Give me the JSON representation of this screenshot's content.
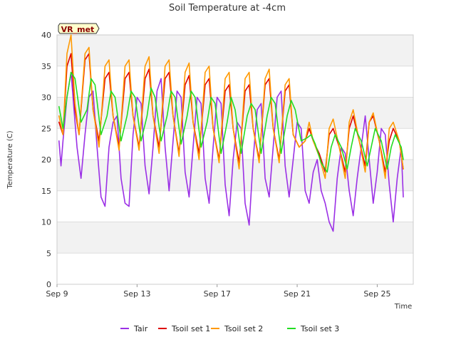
{
  "chart_data": {
    "type": "line",
    "title": "Soil Temperature at -4cm",
    "xlabel": "Time",
    "ylabel": "Temperature (C)",
    "badge": "VR_met",
    "x_unit": "day (Sep)",
    "xlim": [
      9,
      26.8
    ],
    "ylim": [
      0,
      40
    ],
    "yticks": [
      0,
      5,
      10,
      15,
      20,
      25,
      30,
      35,
      40
    ],
    "xticks": [
      {
        "value": 9,
        "label": "Sep 9"
      },
      {
        "value": 13,
        "label": "Sep 13"
      },
      {
        "value": 17,
        "label": "Sep 17"
      },
      {
        "value": 21,
        "label": "Sep 21"
      },
      {
        "value": 25,
        "label": "Sep 25"
      }
    ],
    "grid": true,
    "legend_position": "bottom",
    "series": [
      {
        "name": "Tair",
        "color": "#9b30e6",
        "x": [
          9.1,
          9.2,
          9.3,
          9.5,
          9.7,
          9.8,
          10.0,
          10.2,
          10.4,
          10.6,
          10.8,
          11.0,
          11.2,
          11.4,
          11.6,
          11.8,
          12.0,
          12.2,
          12.4,
          12.6,
          12.8,
          13.0,
          13.2,
          13.4,
          13.6,
          13.8,
          14.0,
          14.2,
          14.4,
          14.6,
          14.8,
          15.0,
          15.2,
          15.4,
          15.6,
          15.8,
          16.0,
          16.2,
          16.4,
          16.6,
          16.8,
          17.0,
          17.2,
          17.4,
          17.6,
          17.8,
          18.0,
          18.2,
          18.4,
          18.6,
          18.8,
          19.0,
          19.2,
          19.4,
          19.6,
          19.8,
          20.0,
          20.2,
          20.4,
          20.6,
          20.8,
          21.0,
          21.2,
          21.4,
          21.6,
          21.8,
          22.0,
          22.2,
          22.4,
          22.6,
          22.8,
          23.0,
          23.2,
          23.4,
          23.6,
          23.8,
          24.0,
          24.2,
          24.4,
          24.6,
          24.8,
          25.0,
          25.2,
          25.4,
          25.6,
          25.8,
          26.0,
          26.2,
          26.3
        ],
        "y": [
          23,
          19,
          23,
          30,
          34,
          30,
          22,
          17,
          24,
          30,
          31,
          22,
          14,
          12.5,
          22,
          26,
          27,
          17,
          13,
          12.5,
          24,
          30,
          29,
          19,
          14.5,
          22,
          31,
          33,
          22,
          15,
          23,
          31,
          30,
          18,
          14,
          22,
          30,
          29,
          17,
          13,
          22,
          30,
          29,
          16,
          11,
          20,
          26,
          25,
          13,
          9.5,
          20,
          28,
          29,
          17,
          14,
          22,
          30,
          31,
          19,
          14,
          20,
          26,
          25,
          15,
          13,
          18,
          20,
          15,
          13,
          10,
          8.5,
          17,
          22,
          21,
          15,
          11,
          17,
          22,
          27,
          20,
          13,
          18,
          25,
          24,
          16,
          10,
          17,
          22,
          14
        ]
      },
      {
        "name": "Tsoil set 1",
        "color": "#dd0000",
        "x": [
          9.1,
          9.3,
          9.5,
          9.7,
          9.9,
          10.1,
          10.4,
          10.6,
          10.8,
          11.1,
          11.4,
          11.6,
          11.8,
          12.1,
          12.4,
          12.6,
          12.8,
          13.1,
          13.4,
          13.6,
          13.8,
          14.1,
          14.4,
          14.6,
          14.8,
          15.1,
          15.4,
          15.6,
          15.8,
          16.1,
          16.4,
          16.6,
          16.8,
          17.1,
          17.4,
          17.6,
          17.8,
          18.1,
          18.4,
          18.6,
          18.8,
          19.1,
          19.4,
          19.6,
          19.8,
          20.1,
          20.4,
          20.6,
          20.8,
          21.1,
          21.4,
          21.6,
          21.8,
          22.1,
          22.4,
          22.6,
          22.8,
          23.1,
          23.4,
          23.6,
          23.8,
          24.1,
          24.4,
          24.6,
          24.8,
          25.1,
          25.4,
          25.6,
          25.8,
          26.1,
          26.3
        ],
        "y": [
          26,
          24,
          35,
          37,
          28,
          24,
          36,
          37,
          28,
          23,
          33,
          34,
          27,
          22,
          33,
          34,
          27,
          22,
          33,
          34.5,
          27,
          22,
          33,
          34,
          27,
          21,
          32,
          33.5,
          26,
          21,
          32,
          33,
          25,
          20,
          31,
          32,
          25,
          19.5,
          31,
          32,
          25,
          20,
          32,
          33,
          25,
          20,
          31,
          32,
          24,
          22,
          23,
          25,
          23,
          21,
          18,
          24,
          25,
          22,
          18,
          25,
          27,
          23,
          19,
          26,
          27,
          23,
          18,
          23,
          25,
          23,
          18.5
        ]
      },
      {
        "name": "Tsoil set 2",
        "color": "#ff9900",
        "x": [
          9.1,
          9.3,
          9.5,
          9.7,
          9.9,
          10.1,
          10.4,
          10.6,
          10.8,
          11.1,
          11.4,
          11.6,
          11.8,
          12.1,
          12.4,
          12.6,
          12.8,
          13.1,
          13.4,
          13.6,
          13.8,
          14.1,
          14.4,
          14.6,
          14.8,
          15.1,
          15.4,
          15.6,
          15.8,
          16.1,
          16.4,
          16.6,
          16.8,
          17.1,
          17.4,
          17.6,
          17.8,
          18.1,
          18.4,
          18.6,
          18.8,
          19.1,
          19.4,
          19.6,
          19.8,
          20.1,
          20.4,
          20.6,
          20.8,
          21.1,
          21.4,
          21.6,
          21.8,
          22.1,
          22.4,
          22.6,
          22.8,
          23.1,
          23.4,
          23.6,
          23.8,
          24.1,
          24.4,
          24.6,
          24.8,
          25.1,
          25.4,
          25.6,
          25.8,
          26.1,
          26.3
        ],
        "y": [
          27,
          24,
          37,
          40,
          29,
          24,
          37,
          38,
          28,
          22,
          35,
          36,
          27,
          21.5,
          35,
          36,
          27,
          21.5,
          35,
          36.5,
          27,
          21,
          35,
          36,
          27,
          20.5,
          34,
          35.5,
          26,
          20,
          34,
          35,
          25,
          19.5,
          33,
          34,
          25,
          18.5,
          33,
          34,
          25,
          19.5,
          33,
          34.5,
          25,
          19.5,
          32,
          33,
          24,
          22,
          23,
          26,
          23,
          20.5,
          17,
          25,
          26.5,
          22,
          17,
          26,
          28,
          23,
          18,
          26,
          27.5,
          23,
          17,
          25,
          26,
          23,
          18.5
        ]
      },
      {
        "name": "Tsoil set 3",
        "color": "#22dd22",
        "x": [
          9.1,
          9.3,
          9.5,
          9.7,
          9.9,
          10.2,
          10.5,
          10.7,
          10.9,
          11.2,
          11.5,
          11.7,
          11.9,
          12.2,
          12.5,
          12.7,
          12.9,
          13.2,
          13.5,
          13.7,
          13.9,
          14.2,
          14.5,
          14.7,
          14.9,
          15.2,
          15.5,
          15.7,
          15.9,
          16.2,
          16.5,
          16.7,
          16.9,
          17.2,
          17.5,
          17.7,
          17.9,
          18.2,
          18.5,
          18.7,
          18.9,
          19.2,
          19.5,
          19.7,
          19.9,
          20.2,
          20.5,
          20.7,
          20.9,
          21.2,
          21.5,
          21.7,
          21.9,
          22.2,
          22.5,
          22.7,
          22.9,
          23.2,
          23.5,
          23.7,
          23.9,
          24.2,
          24.5,
          24.7,
          24.9,
          25.2,
          25.5,
          25.7,
          25.9,
          26.2,
          26.3
        ],
        "y": [
          28.5,
          25,
          30,
          34,
          33,
          26,
          28,
          33,
          32,
          24,
          27,
          31,
          30,
          23,
          27,
          31,
          30,
          23,
          27,
          31.5,
          30,
          23,
          27,
          31,
          30,
          22.5,
          27,
          31,
          30,
          22,
          26,
          30,
          29,
          21,
          26,
          30,
          28,
          21,
          27,
          29,
          28,
          21,
          27,
          30,
          29,
          21,
          27,
          29.5,
          28,
          23,
          23.5,
          24,
          22.5,
          19.5,
          18,
          22,
          24,
          22,
          18.5,
          22,
          25,
          23,
          19,
          22,
          25,
          23,
          18.5,
          22,
          24,
          22,
          20
        ]
      }
    ]
  }
}
